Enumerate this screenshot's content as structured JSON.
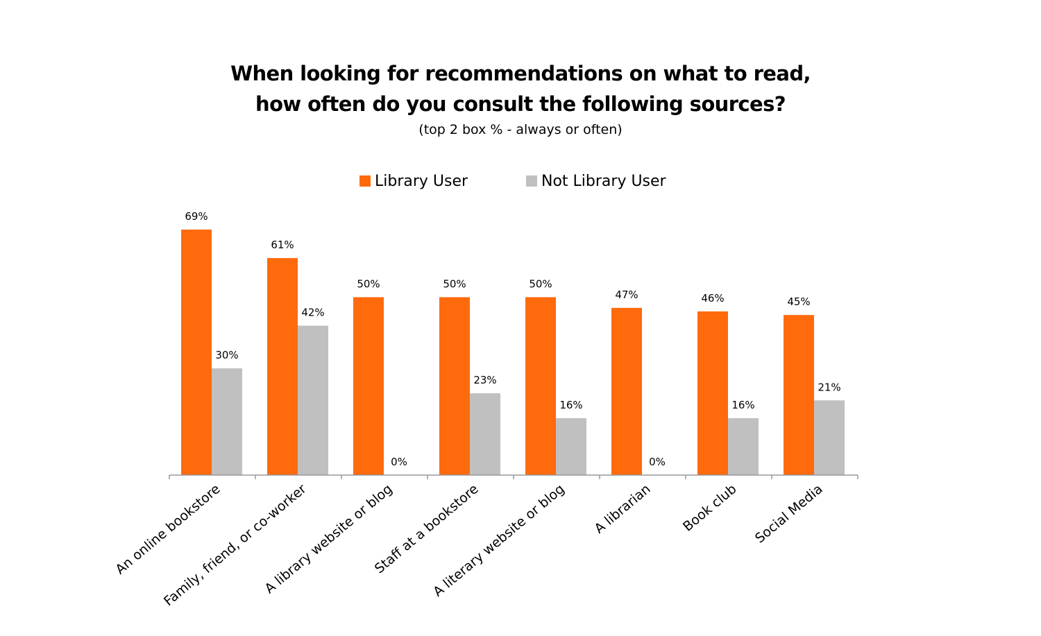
{
  "chart_data": {
    "type": "bar",
    "title": [
      "When looking for recommendations on what to read,",
      "how often do you consult the following sources?"
    ],
    "subtitle": "(top 2 box % - always or often)",
    "categories": [
      "An online bookstore",
      "Family, friend, or co-worker",
      "A library website or blog",
      "Staff at a bookstore",
      "A literary website or blog",
      "A librarian",
      "Book club",
      "Social Media"
    ],
    "series": [
      {
        "name": "Library User",
        "color": "#ff6a0d",
        "values": [
          69,
          61,
          50,
          50,
          50,
          47,
          46,
          45
        ],
        "labels": [
          "69%",
          "61%",
          "50%",
          "50%",
          "50%",
          "47%",
          "46%",
          "45%"
        ]
      },
      {
        "name": "Not Library User",
        "color": "#c0c0c0",
        "values": [
          30,
          42,
          0,
          23,
          16,
          0,
          16,
          21
        ],
        "labels": [
          "30%",
          "42%",
          "0%",
          "23%",
          "16%",
          "0%",
          "16%",
          "21%"
        ]
      }
    ],
    "ylim": [
      0,
      69
    ],
    "grid": false,
    "legend_position": "top-center",
    "axis_color": "#999999"
  }
}
